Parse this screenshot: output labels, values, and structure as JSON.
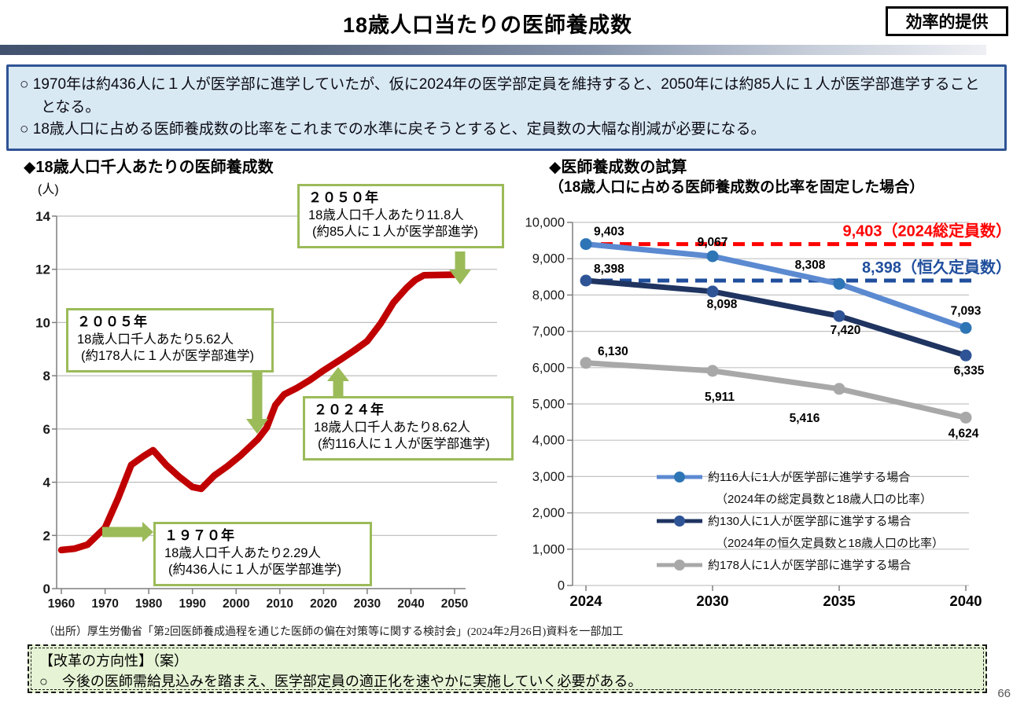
{
  "page": {
    "title": "18歳人口当たりの医師養成数",
    "tag": "効率的提供",
    "page_number": "66",
    "source": "（出所）厚生労働省「第2回医師養成過程を通じた医師の偏在対策等に関する検討会」(2024年2月26日)資料を一部加工"
  },
  "summary": {
    "bullets": [
      "○ 1970年は約436人に１人が医学部に進学していたが、仮に2024年の医学部定員を維持すると、2050年には約85人に１人が医学部進学することとなる。",
      "○ 18歳人口に占める医師養成数の比率をこれまでの水準に戻そうとすると、定員数の大幅な削減が必要になる。"
    ]
  },
  "proposal": {
    "heading": "【改革の方向性】（案）",
    "bullet": "○　今後の医師需給見込みを踏まえ、医学部定員の適正化を速やかに実施していく必要がある。"
  },
  "chart_data": [
    {
      "id": "per-thousand-18yo",
      "type": "line",
      "title": "◆18歳人口千人あたりの医師養成数",
      "unit": "(人)",
      "ylim": [
        0,
        14
      ],
      "ytick_step": 2,
      "grid": true,
      "legend_position": "none",
      "xticks": [
        1960,
        1970,
        1980,
        1990,
        2000,
        2010,
        2020,
        2030,
        2040,
        2050
      ],
      "series": [
        {
          "name": "18歳人口千人あたりの医師養成数",
          "color": "#c00000",
          "points": [
            [
              1960,
              1.45
            ],
            [
              1963,
              1.5
            ],
            [
              1966,
              1.65
            ],
            [
              1970,
              2.29
            ],
            [
              1973,
              3.4
            ],
            [
              1976,
              4.65
            ],
            [
              1979,
              5.0
            ],
            [
              1981,
              5.2
            ],
            [
              1984,
              4.65
            ],
            [
              1987,
              4.2
            ],
            [
              1990,
              3.82
            ],
            [
              1992,
              3.75
            ],
            [
              1995,
              4.25
            ],
            [
              1998,
              4.6
            ],
            [
              2001,
              5.0
            ],
            [
              2005,
              5.62
            ],
            [
              2007,
              6.05
            ],
            [
              2009,
              6.9
            ],
            [
              2011,
              7.3
            ],
            [
              2014,
              7.55
            ],
            [
              2017,
              7.85
            ],
            [
              2020,
              8.2
            ],
            [
              2024,
              8.62
            ],
            [
              2027,
              8.95
            ],
            [
              2030,
              9.3
            ],
            [
              2033,
              9.95
            ],
            [
              2036,
              10.75
            ],
            [
              2039,
              11.3
            ],
            [
              2041,
              11.6
            ],
            [
              2043,
              11.78
            ],
            [
              2050,
              11.8
            ]
          ]
        }
      ],
      "annotations": [
        {
          "year": "１９７０年",
          "line1": "18歳人口千人あたり2.29人",
          "line2": "(約436人に１人が医学部進学)"
        },
        {
          "year": "２００５年",
          "line1": "18歳人口千人あたり5.62人",
          "line2": "(約178人に１人が医学部進学)"
        },
        {
          "year": "２０２４年",
          "line1": "18歳人口千人あたり8.62人",
          "line2": "(約116人に１人が医学部進学)"
        },
        {
          "year": "２０５０年",
          "line1": "18歳人口千人あたり11.8人",
          "line2": "(約85人に１人が医学部進学)"
        }
      ]
    },
    {
      "id": "simulation",
      "type": "line",
      "title": "◆医師養成数の試算",
      "subtitle": "（18歳人口に占める医師養成数の比率を固定した場合）",
      "categories": [
        "2024",
        "2030",
        "2035",
        "2040"
      ],
      "ylim": [
        0,
        10000
      ],
      "ytick_step": 1000,
      "grid": true,
      "legend_position": "inside-bottom",
      "series": [
        {
          "name": "約116人に1人が医学部に進学する場合",
          "name_sub": "（2024年の総定員数と18歳人口の比率）",
          "color": "#5b8ad1",
          "marker_color": "#2e75b6",
          "values": [
            9403,
            9067,
            8308,
            7093
          ]
        },
        {
          "name": "約130人に1人が医学部に進学する場合",
          "name_sub": "（2024年の恒久定員数と18歳人口の比率）",
          "color": "#1f3460",
          "marker_color": "#2f5496",
          "values": [
            8398,
            8098,
            7420,
            6335
          ]
        },
        {
          "name": "約178人に1人が医学部に進学する場合",
          "name_sub": "",
          "color": "#a8a8a8",
          "marker_color": "#a8a8a8",
          "values": [
            6130,
            5911,
            5416,
            4624
          ]
        }
      ],
      "ref_lines": [
        {
          "value": 9403,
          "label": "9,403（2024総定員数）",
          "color": "#ff0000"
        },
        {
          "value": 8398,
          "label": "8,398（恒久定員数）",
          "color": "#1f4e9c"
        }
      ]
    }
  ]
}
